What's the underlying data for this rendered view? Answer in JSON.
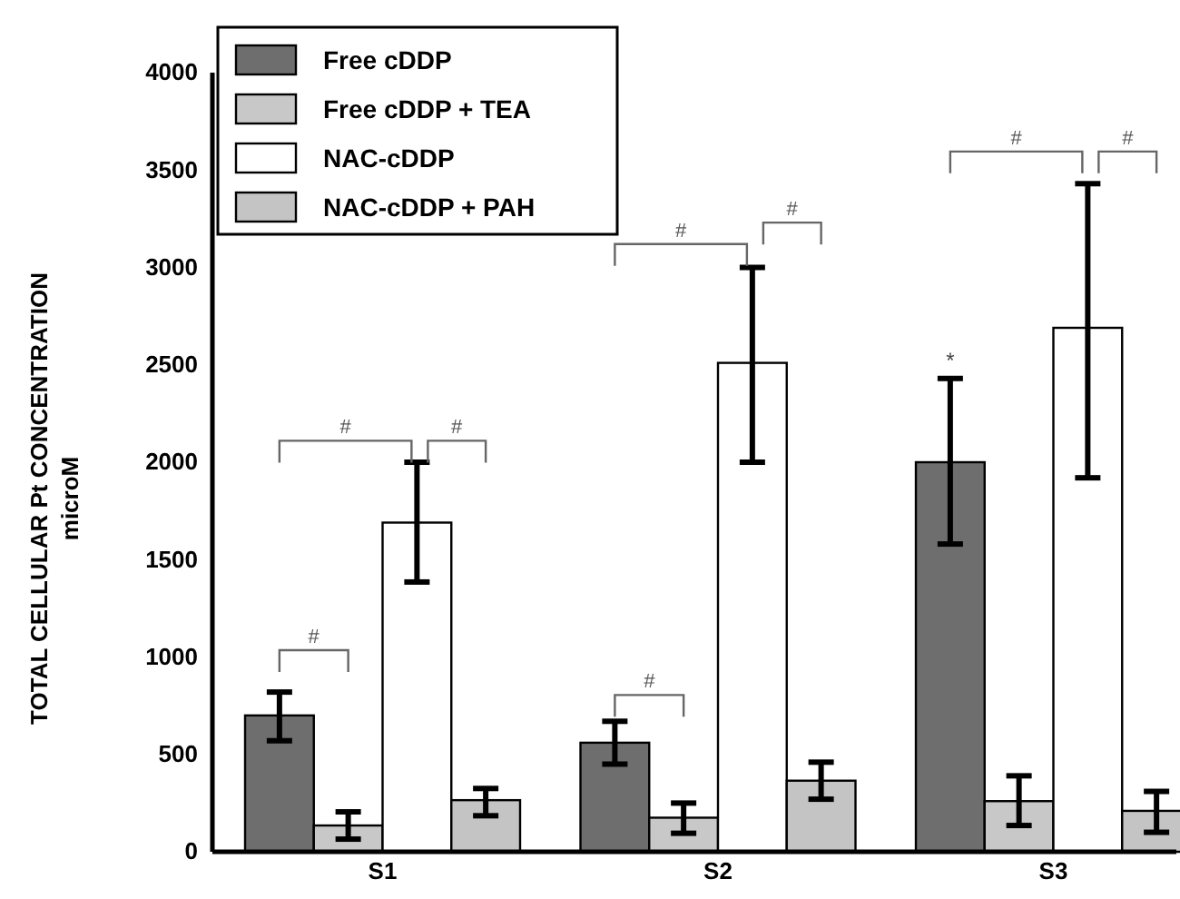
{
  "chart_data": {
    "type": "bar",
    "ylabel": "TOTAL CELLULAR Pt CONCENTRATION\nmicroM",
    "categories": [
      "S1",
      "S2",
      "S3"
    ],
    "series": [
      {
        "name": "Free cDDP",
        "color": "#6e6e6e",
        "values": [
          700,
          560,
          2000
        ],
        "errors": [
          [
            570,
            820
          ],
          [
            450,
            670
          ],
          [
            1580,
            2430
          ]
        ]
      },
      {
        "name": "Free cDDP + TEA",
        "color": "#c8c8c8",
        "values": [
          135,
          175,
          260
        ],
        "errors": [
          [
            65,
            205
          ],
          [
            95,
            250
          ],
          [
            135,
            390
          ]
        ]
      },
      {
        "name": "NAC-cDDP",
        "color": "#ffffff",
        "values": [
          1690,
          2510,
          2690
        ],
        "errors": [
          [
            1385,
            2000
          ],
          [
            2000,
            3000
          ],
          [
            1920,
            3430
          ]
        ]
      },
      {
        "name": "NAC-cDDP + PAH",
        "color": "#c4c4c4",
        "values": [
          265,
          365,
          210
        ],
        "errors": [
          [
            185,
            325
          ],
          [
            270,
            460
          ],
          [
            100,
            310
          ]
        ]
      }
    ],
    "ylim": [
      0,
      4000
    ],
    "yticks": [
      0,
      500,
      1000,
      1500,
      2000,
      2500,
      3000,
      3500,
      4000
    ],
    "legend": "top left",
    "annotations": [
      "#",
      "#",
      "#",
      "#",
      "#",
      "#",
      "#",
      "#",
      "*"
    ]
  }
}
